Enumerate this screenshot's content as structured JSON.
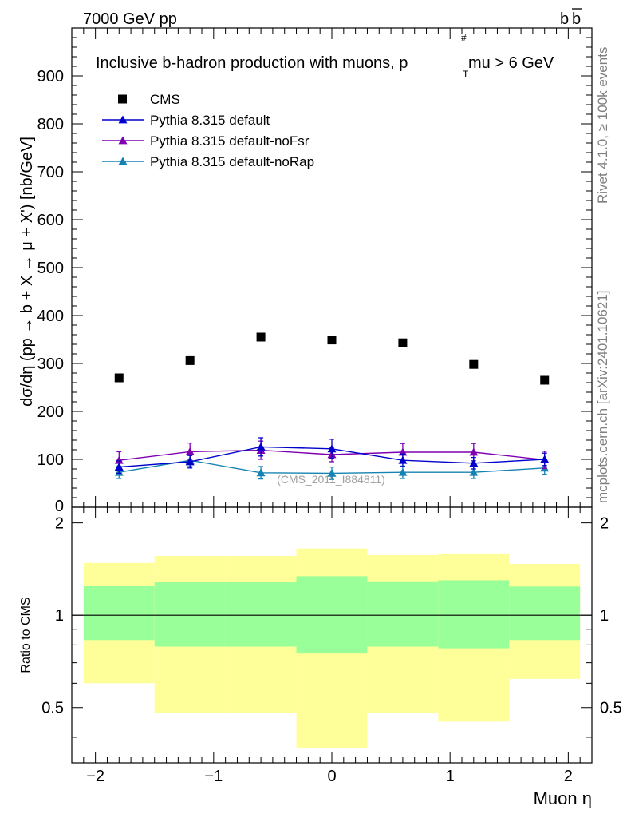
{
  "header": {
    "left": "7000 GeV pp",
    "right": "b",
    "right_bar": "b"
  },
  "side_labels": {
    "rivet": "Rivet 4.1.0, ≥ 100k events",
    "mcplots": "mcplots.cern.ch [arXiv:2401.10621]"
  },
  "watermark": "(CMS_2011_I884811)",
  "colors": {
    "data": "#000000",
    "default": "#0000cc",
    "noFsr": "#7f00b2",
    "noRap": "#1583b2",
    "band_outer": "#ffff99",
    "band_inner": "#99ff99"
  },
  "chart_data": [
    {
      "type": "scatter",
      "title": "Inclusive b-hadron production with muons, p",
      "title_sub": "T",
      "title_sup": "#",
      "title_tail": "mu > 6 GeV",
      "ylabel": "dσ/dη (pp → b + X → μ + X') [nb/GeV]",
      "xlim": [
        -2.2,
        2.2
      ],
      "ylim": [
        0,
        1000
      ],
      "yticks": [
        100,
        200,
        300,
        400,
        500,
        600,
        700,
        800,
        900
      ],
      "yticks_cut": "0",
      "x": [
        -1.8,
        -1.2,
        -0.6,
        0.0,
        0.6,
        1.2,
        1.8
      ],
      "series": [
        {
          "name": "CMS",
          "values": [
            270,
            306,
            355,
            349,
            343,
            298,
            265
          ],
          "errors": [
            0,
            0,
            0,
            0,
            0,
            0,
            0
          ]
        },
        {
          "name": "Pythia 8.315 default",
          "values": [
            84,
            95,
            126,
            122,
            98,
            92,
            100
          ],
          "errors": [
            13,
            13,
            19,
            20,
            13,
            12,
            13
          ]
        },
        {
          "name": "Pythia 8.315 default-noFsr",
          "values": [
            98,
            116,
            119,
            110,
            115,
            115,
            99
          ],
          "errors": [
            18,
            18,
            19,
            15,
            18,
            18,
            18
          ]
        },
        {
          "name": "Pythia 8.315 default-noRap",
          "values": [
            73,
            98,
            72,
            71,
            73,
            73,
            82
          ],
          "errors": [
            13,
            13,
            13,
            13,
            13,
            13,
            13
          ]
        }
      ]
    },
    {
      "type": "area",
      "ylabel": "Ratio to CMS",
      "xlabel": "Muon η",
      "xlim": [
        -2.2,
        2.2
      ],
      "ylim": [
        0.33,
        2.25
      ],
      "xticks": [
        "−2",
        "−1",
        "0",
        "1",
        "2"
      ],
      "xtick_values": [
        -2,
        -1,
        0,
        1,
        2
      ],
      "yticks": [
        "0.5",
        "1",
        "2"
      ],
      "ytick_values": [
        0.5,
        1,
        2
      ],
      "bin_edges": [
        -2.1,
        -1.5,
        -0.9,
        -0.3,
        0.3,
        0.9,
        1.5,
        2.1
      ],
      "outer_band": {
        "lo": [
          0.6,
          0.48,
          0.48,
          0.37,
          0.48,
          0.45,
          0.62
        ],
        "hi": [
          1.48,
          1.56,
          1.56,
          1.65,
          1.57,
          1.59,
          1.47
        ]
      },
      "inner_band": {
        "lo": [
          0.83,
          0.79,
          0.79,
          0.75,
          0.79,
          0.78,
          0.83
        ],
        "hi": [
          1.25,
          1.28,
          1.28,
          1.34,
          1.29,
          1.3,
          1.24
        ]
      },
      "reference": 1
    }
  ]
}
